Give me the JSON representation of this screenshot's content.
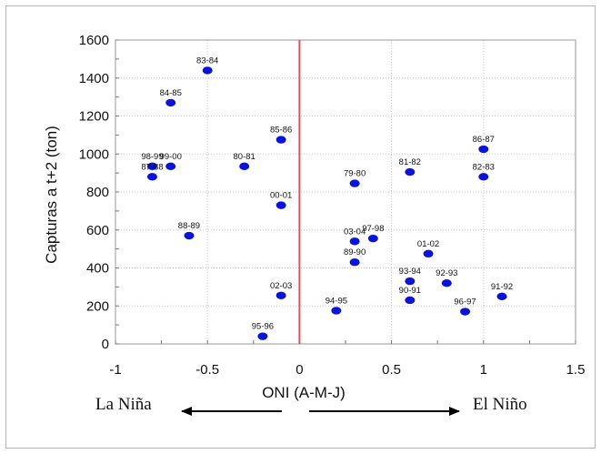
{
  "chart_data": {
    "type": "scatter",
    "title": "",
    "xlabel": "ONI (A-M-J)",
    "ylabel": "Capturas a t+2 (ton)",
    "xlim": [
      -1,
      1.5
    ],
    "ylim": [
      0,
      1600
    ],
    "xticks": [
      "-1",
      "-0.5",
      "0",
      "0.5",
      "1",
      "1.5"
    ],
    "yticks": [
      "0",
      "200",
      "400",
      "600",
      "800",
      "1000",
      "1200",
      "1400",
      "1600"
    ],
    "grid": true,
    "reference_line_x": 0,
    "point_color": "#0a14d8",
    "reference_line_color": "#e0525a",
    "points": [
      {
        "label": "83-84",
        "x": -0.5,
        "y": 1440
      },
      {
        "label": "84-85",
        "x": -0.7,
        "y": 1270
      },
      {
        "label": "85-86",
        "x": -0.1,
        "y": 1075
      },
      {
        "label": "98-99",
        "x": -0.8,
        "y": 935
      },
      {
        "label": "99-00",
        "x": -0.7,
        "y": 935
      },
      {
        "label": "87-88",
        "x": -0.8,
        "y": 880
      },
      {
        "label": "80-81",
        "x": -0.3,
        "y": 935
      },
      {
        "label": "00-01",
        "x": -0.1,
        "y": 730
      },
      {
        "label": "88-89",
        "x": -0.6,
        "y": 570
      },
      {
        "label": "02-03",
        "x": -0.1,
        "y": 255
      },
      {
        "label": "95-96",
        "x": -0.2,
        "y": 40
      },
      {
        "label": "79-80",
        "x": 0.3,
        "y": 845
      },
      {
        "label": "81-82",
        "x": 0.6,
        "y": 905
      },
      {
        "label": "86-87",
        "x": 1.0,
        "y": 1025
      },
      {
        "label": "82-83",
        "x": 1.0,
        "y": 880
      },
      {
        "label": "03-04",
        "x": 0.3,
        "y": 540
      },
      {
        "label": "97-98",
        "x": 0.4,
        "y": 555
      },
      {
        "label": "01-02",
        "x": 0.7,
        "y": 475
      },
      {
        "label": "89-90",
        "x": 0.3,
        "y": 430
      },
      {
        "label": "93-94",
        "x": 0.6,
        "y": 330
      },
      {
        "label": "92-93",
        "x": 0.8,
        "y": 320
      },
      {
        "label": "90-91",
        "x": 0.6,
        "y": 230
      },
      {
        "label": "91-92",
        "x": 1.1,
        "y": 250
      },
      {
        "label": "94-95",
        "x": 0.2,
        "y": 175
      },
      {
        "label": "96-97",
        "x": 0.9,
        "y": 170
      }
    ],
    "annotations": {
      "left": "La Niña",
      "right": "El Niño"
    }
  }
}
